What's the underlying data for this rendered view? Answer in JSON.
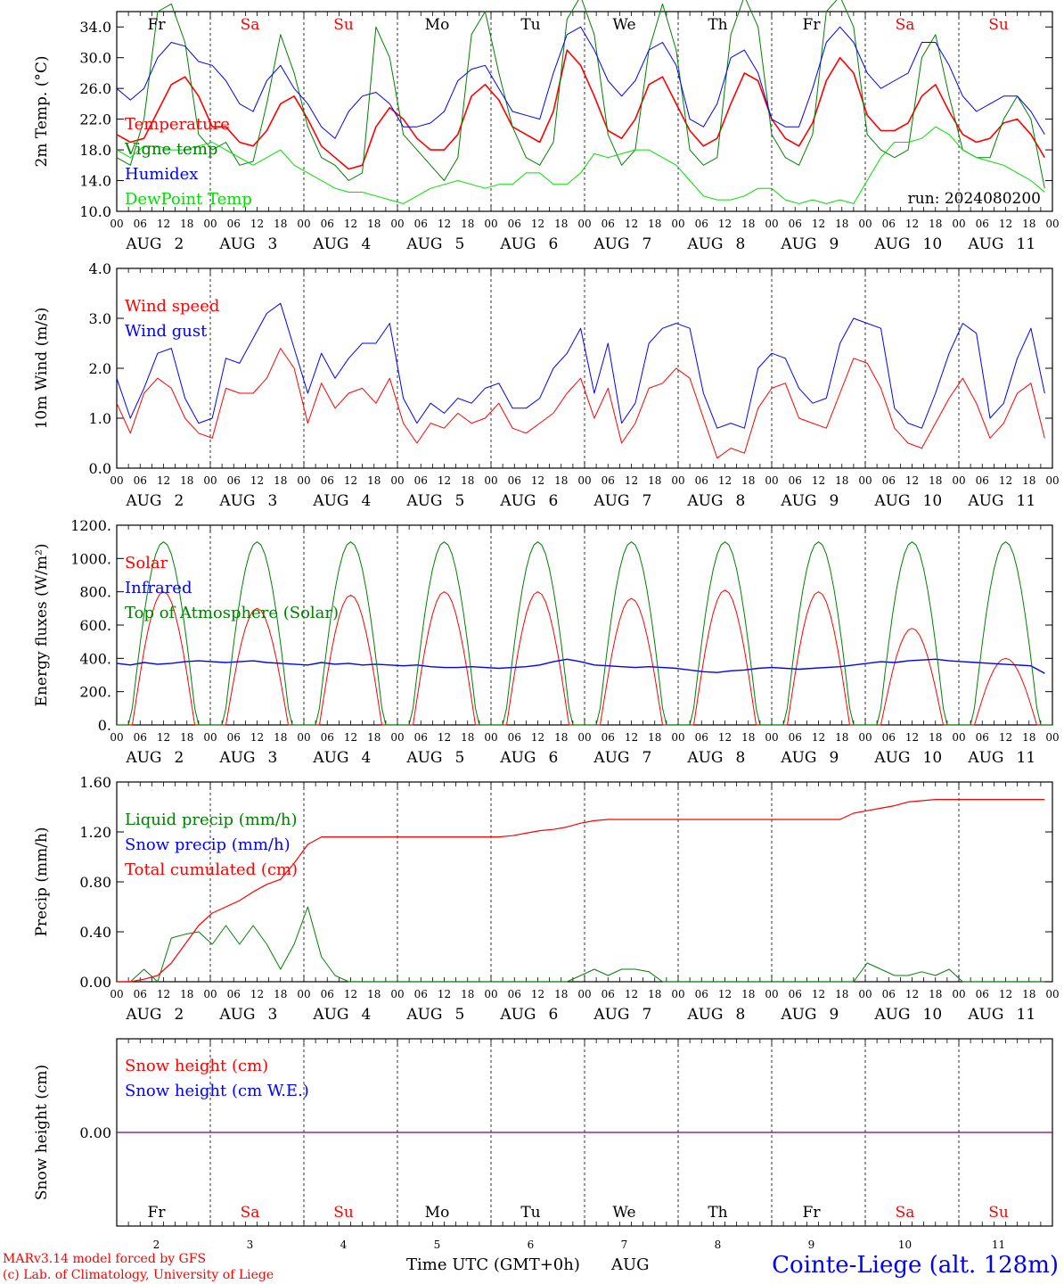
{
  "days": [
    {
      "name": "Fr",
      "date": "2",
      "color": "#000000"
    },
    {
      "name": "Sa",
      "date": "3",
      "color": "#ff0000"
    },
    {
      "name": "Su",
      "date": "4",
      "color": "#ff0000"
    },
    {
      "name": "Mo",
      "date": "5",
      "color": "#000000"
    },
    {
      "name": "Tu",
      "date": "6",
      "color": "#000000"
    },
    {
      "name": "We",
      "date": "7",
      "color": "#000000"
    },
    {
      "name": "Th",
      "date": "8",
      "color": "#000000"
    },
    {
      "name": "Fr",
      "date": "9",
      "color": "#000000"
    },
    {
      "name": "Sa",
      "date": "10",
      "color": "#ff0000"
    },
    {
      "name": "Su",
      "date": "11",
      "color": "#ff0000"
    }
  ],
  "month_label": "AUG",
  "hour_ticks": [
    "00",
    "06",
    "12",
    "18"
  ],
  "hour_end_label": "00",
  "colors": {
    "red": "#ff0000",
    "green": "#008000",
    "blue": "#0000ff",
    "lightgreen": "#00e000",
    "purple": "#800080"
  },
  "footer": {
    "credit1": "MARv3.14 model forced by GFS",
    "credit2": "(c) Lab. of Climatology, University of Liege",
    "xaxis": "Time UTC (GMT+0h)",
    "month": "AUG",
    "station": "Cointe-Liege (alt. 128m)"
  },
  "chart_data": [
    {
      "id": "temp",
      "type": "line",
      "ylabel": "2m Temp. (°C)",
      "ylim": [
        10,
        36
      ],
      "ticks": [
        10,
        14,
        18,
        22,
        26,
        30,
        34
      ],
      "tick_labels": [
        "10.0",
        "14.0",
        "18.0",
        "22.0",
        "26.0",
        "30.0",
        "34.0"
      ],
      "annotation": "run: 2024080200",
      "x_unit": "hours since 2024-08-02 00 UTC, 3-hourly",
      "series": [
        {
          "name": "Temperature",
          "color": "#ff0000",
          "width": 1.6,
          "values": [
            20,
            19,
            19.5,
            23,
            26.5,
            27.5,
            25,
            21,
            21,
            19,
            18.5,
            20.5,
            24,
            25,
            22,
            18.5,
            17,
            15.5,
            16,
            21,
            23.5,
            22,
            19.5,
            18,
            18,
            20,
            25,
            26.5,
            24.5,
            21,
            20,
            19,
            23,
            31,
            29,
            25,
            20.5,
            19.5,
            22,
            26.5,
            27.5,
            24,
            20.5,
            18.5,
            19.5,
            24,
            28,
            27,
            22,
            19.5,
            18.5,
            21.5,
            27,
            30,
            28,
            22.5,
            20.5,
            20.5,
            21.5,
            25,
            26.5,
            23,
            20,
            19,
            19.5,
            21.5,
            22,
            20,
            17
          ]
        },
        {
          "name": "Vigne temp",
          "color": "#008000",
          "width": 1.0,
          "values": [
            17,
            16,
            22,
            36,
            37,
            32,
            20,
            18,
            19,
            16,
            16.5,
            24,
            33,
            28,
            21,
            17,
            16,
            14,
            15,
            34,
            30,
            20,
            18,
            16,
            14,
            17,
            33,
            36,
            28,
            21,
            17,
            16,
            19,
            35,
            38,
            33,
            20,
            16,
            18,
            31,
            37,
            31,
            18,
            16,
            17,
            33,
            38,
            34,
            20,
            17,
            16,
            20,
            36,
            38,
            34,
            20,
            18,
            17,
            18,
            30,
            33,
            25,
            18,
            17,
            17,
            22,
            25,
            22,
            13
          ]
        },
        {
          "name": "Humidex",
          "color": "#0000ff",
          "width": 1.0,
          "values": [
            26,
            24.5,
            26,
            30,
            32,
            31.5,
            29.5,
            29,
            27,
            24,
            23,
            27,
            29,
            26,
            24,
            21,
            19.5,
            23,
            25,
            25.5,
            24,
            21,
            21,
            21.5,
            23,
            27,
            28.5,
            29,
            26,
            23,
            22.5,
            22,
            28,
            33,
            34,
            31,
            27,
            25,
            27,
            31,
            32,
            29,
            22,
            21,
            24,
            30,
            31,
            28,
            22,
            21,
            21,
            26,
            32,
            34,
            32,
            28,
            26,
            27,
            28,
            32,
            32,
            29,
            25,
            23,
            24,
            25,
            25,
            23,
            20
          ]
        },
        {
          "name": "DewPoint Temp",
          "color": "#00e000",
          "width": 1.0,
          "values": [
            18,
            17,
            18.5,
            18.5,
            18,
            18,
            18.5,
            19,
            18,
            17,
            16,
            17,
            18,
            16,
            15,
            14,
            13,
            12.5,
            12.5,
            12,
            11.5,
            11,
            12,
            13,
            13.5,
            14,
            13.5,
            13,
            13.5,
            13.5,
            15,
            15,
            13.5,
            13.5,
            15,
            17.5,
            17,
            17.5,
            18,
            18,
            17,
            16,
            14,
            12,
            11.5,
            11.5,
            12,
            13,
            13,
            11.5,
            11,
            11.5,
            11,
            11.5,
            11,
            14,
            17,
            19,
            19,
            19.5,
            21,
            20,
            18,
            17,
            16.5,
            16,
            15,
            14,
            12.5
          ]
        }
      ]
    },
    {
      "id": "wind",
      "type": "line",
      "ylabel": "10m Wind (m/s)",
      "ylim": [
        0,
        4
      ],
      "ticks": [
        0,
        1,
        2,
        3,
        4
      ],
      "tick_labels": [
        "0.0",
        "1.0",
        "2.0",
        "3.0",
        "4.0"
      ],
      "series": [
        {
          "name": "Wind speed",
          "color": "#ff0000",
          "width": 1.0,
          "values": [
            1.3,
            0.7,
            1.5,
            1.8,
            1.6,
            1.0,
            0.7,
            0.6,
            1.6,
            1.5,
            1.5,
            1.8,
            2.4,
            2.0,
            0.9,
            1.7,
            1.2,
            1.5,
            1.6,
            1.3,
            1.8,
            0.9,
            0.5,
            0.9,
            0.8,
            1.1,
            0.9,
            1.0,
            1.3,
            0.8,
            0.7,
            0.9,
            1.1,
            1.5,
            1.8,
            1.0,
            1.6,
            0.5,
            0.9,
            1.6,
            1.7,
            2.0,
            1.8,
            1.0,
            0.2,
            0.4,
            0.3,
            1.2,
            1.6,
            1.7,
            1.0,
            0.9,
            0.8,
            1.5,
            2.2,
            2.1,
            1.6,
            0.8,
            0.5,
            0.4,
            0.9,
            1.4,
            1.8,
            1.3,
            0.6,
            0.9,
            1.5,
            1.7,
            0.6
          ]
        },
        {
          "name": "Wind gust",
          "color": "#0000ff",
          "width": 1.0,
          "values": [
            1.8,
            1.0,
            1.6,
            2.3,
            2.4,
            1.4,
            0.9,
            1.0,
            2.2,
            2.1,
            2.6,
            3.1,
            3.3,
            2.4,
            1.5,
            2.3,
            1.8,
            2.2,
            2.5,
            2.5,
            2.9,
            1.4,
            0.9,
            1.3,
            1.1,
            1.4,
            1.3,
            1.6,
            1.7,
            1.2,
            1.2,
            1.4,
            2.0,
            2.3,
            2.8,
            1.5,
            2.5,
            0.9,
            1.3,
            2.5,
            2.8,
            2.9,
            2.8,
            1.5,
            0.8,
            0.9,
            0.8,
            2.0,
            2.3,
            2.2,
            1.6,
            1.3,
            1.4,
            2.5,
            3.0,
            2.9,
            2.8,
            1.2,
            0.9,
            0.8,
            1.5,
            2.3,
            2.9,
            2.7,
            1.0,
            1.3,
            2.2,
            2.8,
            1.5
          ]
        }
      ]
    },
    {
      "id": "energy",
      "type": "line",
      "ylabel": "Energy fluxes (W/m²)",
      "ylim": [
        0,
        1200
      ],
      "ticks": [
        0,
        200,
        400,
        600,
        800,
        1000,
        1200
      ],
      "tick_labels": [
        "0.",
        "200.",
        "400.",
        "600.",
        "800.",
        "1000.",
        "1200."
      ],
      "solar_peaks": [
        800,
        700,
        780,
        800,
        800,
        760,
        810,
        800,
        580,
        400
      ],
      "toa_peak": 1100,
      "series": [
        {
          "name": "Solar",
          "color": "#ff0000",
          "width": 1.0
        },
        {
          "name": "Infrared",
          "color": "#0000ff",
          "width": 1.4,
          "values": [
            370,
            360,
            375,
            365,
            370,
            380,
            385,
            380,
            375,
            380,
            385,
            375,
            370,
            365,
            360,
            375,
            365,
            370,
            360,
            365,
            360,
            355,
            360,
            350,
            345,
            345,
            350,
            345,
            340,
            345,
            350,
            360,
            380,
            395,
            380,
            360,
            355,
            350,
            345,
            350,
            345,
            340,
            330,
            320,
            315,
            325,
            330,
            340,
            345,
            340,
            335,
            340,
            345,
            350,
            360,
            370,
            380,
            375,
            385,
            390,
            395,
            385,
            380,
            375,
            370,
            365,
            360,
            355,
            310
          ]
        },
        {
          "name": "Top of Atmosphere (Solar)",
          "color": "#008000",
          "width": 1.0
        }
      ]
    },
    {
      "id": "precip",
      "type": "line",
      "ylabel": "Precip (mm/h)",
      "ylim": [
        0,
        1.6
      ],
      "ticks": [
        0,
        0.4,
        0.8,
        1.2,
        1.6
      ],
      "tick_labels": [
        "0.00",
        "0.40",
        "0.80",
        "1.20",
        "1.60"
      ],
      "series": [
        {
          "name": "Liquid precip (mm/h)",
          "color": "#008000",
          "width": 1.0,
          "values": [
            0,
            0,
            0.1,
            0,
            0.35,
            0.38,
            0.4,
            0.3,
            0.45,
            0.3,
            0.45,
            0.3,
            0.1,
            0.3,
            0.6,
            0.2,
            0.05,
            0,
            0,
            0,
            0,
            0,
            0,
            0,
            0,
            0,
            0,
            0,
            0,
            0,
            0,
            0,
            0,
            0,
            0.05,
            0.1,
            0.05,
            0.1,
            0.1,
            0.08,
            0,
            0,
            0,
            0,
            0,
            0,
            0,
            0,
            0,
            0,
            0,
            0,
            0,
            0,
            0,
            0.15,
            0.1,
            0.05,
            0.05,
            0.08,
            0.05,
            0.1,
            0,
            0,
            0,
            0,
            0,
            0,
            0
          ]
        },
        {
          "name": "Snow precip (mm/h)",
          "color": "#0000ff",
          "width": 1.0
        },
        {
          "name": "Total cumulated (cm)",
          "color": "#ff0000",
          "width": 1.2,
          "values": [
            0,
            0,
            0.02,
            0.05,
            0.15,
            0.3,
            0.45,
            0.55,
            0.6,
            0.65,
            0.72,
            0.78,
            0.82,
            0.95,
            1.1,
            1.16,
            1.16,
            1.16,
            1.16,
            1.16,
            1.16,
            1.16,
            1.16,
            1.16,
            1.16,
            1.16,
            1.16,
            1.16,
            1.16,
            1.17,
            1.19,
            1.21,
            1.22,
            1.24,
            1.27,
            1.29,
            1.3,
            1.3,
            1.3,
            1.3,
            1.3,
            1.3,
            1.3,
            1.3,
            1.3,
            1.3,
            1.3,
            1.3,
            1.3,
            1.3,
            1.3,
            1.3,
            1.3,
            1.3,
            1.35,
            1.37,
            1.39,
            1.41,
            1.44,
            1.45,
            1.46,
            1.46,
            1.46,
            1.46,
            1.46,
            1.46,
            1.46,
            1.46,
            1.46
          ]
        }
      ]
    },
    {
      "id": "snow",
      "type": "line",
      "ylabel": "Snow height (cm)",
      "tick_labels": [
        "0.00"
      ],
      "series": [
        {
          "name": "Snow height (cm)",
          "color": "#ff0000",
          "width": 1.0,
          "values": [
            0,
            0
          ]
        },
        {
          "name": "Snow height (cm W.E.)",
          "color": "#0000ff",
          "width": 1.0,
          "values": [
            0,
            0
          ]
        }
      ]
    }
  ]
}
